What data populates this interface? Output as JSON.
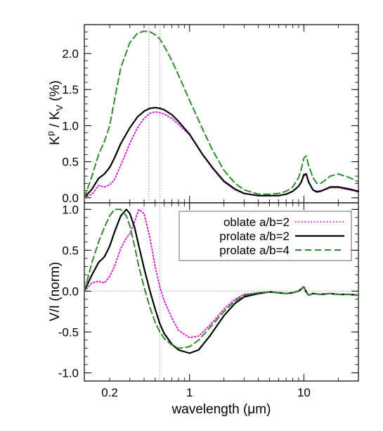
{
  "chart_data": [
    {
      "type": "line",
      "panel": "top",
      "ylabel_parts": {
        "k": "K",
        "sup": "p",
        "sep": " / K",
        "sub": "V",
        "unit": "  (%)"
      },
      "ylabel": "Kp / KV  (%)",
      "ylim": [
        -0.07,
        2.4
      ],
      "yticks": [
        0.0,
        0.5,
        1.0,
        1.5,
        2.0
      ],
      "ytick_labels": [
        "0.0",
        "0.5",
        "1.0",
        "1.5",
        "2.0"
      ],
      "xscale": "log",
      "xlim": [
        0.12,
        30
      ],
      "reference_lines": {
        "vertical_x": [
          0.44,
          0.55
        ]
      },
      "series": [
        {
          "name": "oblate a/b=2",
          "color": "#e01ee0",
          "dash": "dotted",
          "x": [
            0.12,
            0.14,
            0.16,
            0.18,
            0.2,
            0.22,
            0.25,
            0.3,
            0.35,
            0.4,
            0.45,
            0.5,
            0.55,
            0.6,
            0.7,
            0.8,
            1.0,
            1.3,
            1.6,
            2.0,
            2.5,
            3.0,
            4.0,
            5.0,
            6.0,
            7.0,
            8.0,
            9.0,
            9.5,
            10.0,
            10.5,
            11.0,
            12.0,
            13.0,
            14.0,
            15.0,
            17.0,
            20.0,
            25.0,
            30.0
          ],
          "y": [
            0.0,
            0.05,
            0.17,
            0.15,
            0.18,
            0.25,
            0.45,
            0.75,
            0.97,
            1.1,
            1.17,
            1.19,
            1.18,
            1.16,
            1.1,
            1.02,
            0.87,
            0.6,
            0.4,
            0.22,
            0.11,
            0.06,
            0.03,
            0.03,
            0.03,
            0.05,
            0.09,
            0.16,
            0.22,
            0.31,
            0.32,
            0.22,
            0.11,
            0.09,
            0.1,
            0.11,
            0.14,
            0.14,
            0.11,
            0.08
          ]
        },
        {
          "name": "prolate a/b=2",
          "color": "#000000",
          "dash": "solid",
          "x": [
            0.12,
            0.14,
            0.16,
            0.18,
            0.2,
            0.22,
            0.25,
            0.3,
            0.35,
            0.4,
            0.45,
            0.5,
            0.55,
            0.6,
            0.7,
            0.8,
            1.0,
            1.3,
            1.6,
            2.0,
            2.5,
            3.0,
            4.0,
            5.0,
            6.0,
            7.0,
            8.0,
            9.0,
            9.5,
            10.0,
            10.5,
            11.0,
            12.0,
            13.0,
            14.0,
            15.0,
            17.0,
            20.0,
            25.0,
            30.0
          ],
          "y": [
            0.0,
            0.12,
            0.27,
            0.33,
            0.42,
            0.55,
            0.75,
            0.97,
            1.12,
            1.2,
            1.24,
            1.25,
            1.24,
            1.22,
            1.15,
            1.06,
            0.88,
            0.6,
            0.41,
            0.23,
            0.12,
            0.06,
            0.03,
            0.03,
            0.03,
            0.05,
            0.09,
            0.16,
            0.22,
            0.32,
            0.33,
            0.22,
            0.11,
            0.08,
            0.09,
            0.11,
            0.15,
            0.15,
            0.12,
            0.09
          ]
        },
        {
          "name": "prolate a/b=4",
          "color": "#2e8b2e",
          "dash": "dashed",
          "x": [
            0.12,
            0.14,
            0.16,
            0.18,
            0.2,
            0.22,
            0.25,
            0.3,
            0.35,
            0.4,
            0.45,
            0.5,
            0.55,
            0.6,
            0.7,
            0.8,
            1.0,
            1.3,
            1.6,
            2.0,
            2.5,
            3.0,
            4.0,
            5.0,
            6.0,
            7.0,
            8.0,
            9.0,
            9.5,
            10.0,
            10.5,
            11.0,
            12.0,
            13.0,
            14.0,
            15.0,
            17.0,
            20.0,
            25.0,
            30.0
          ],
          "y": [
            0.0,
            0.3,
            0.6,
            0.78,
            1.0,
            1.35,
            1.8,
            2.15,
            2.28,
            2.31,
            2.3,
            2.26,
            2.2,
            2.1,
            1.9,
            1.7,
            1.35,
            0.95,
            0.65,
            0.38,
            0.2,
            0.11,
            0.05,
            0.05,
            0.06,
            0.09,
            0.15,
            0.28,
            0.4,
            0.55,
            0.58,
            0.45,
            0.28,
            0.2,
            0.2,
            0.23,
            0.3,
            0.33,
            0.28,
            0.22
          ]
        }
      ]
    },
    {
      "type": "line",
      "panel": "bottom",
      "ylabel": "V/I (norm)",
      "ylim": [
        -1.1,
        1.08
      ],
      "yticks": [
        -1.0,
        -0.5,
        0.0,
        0.5,
        1.0
      ],
      "ytick_labels": [
        "-1.0",
        "-0.5",
        "0.0",
        "0.5",
        "1.0"
      ],
      "xscale": "log",
      "xlim": [
        0.12,
        30
      ],
      "xticks": [
        0.2,
        1,
        10
      ],
      "xtick_labels": [
        "0.2",
        "1",
        "10"
      ],
      "xlabel": "wavelength (μm)",
      "reference_lines": {
        "horizontal_y": [
          0.0
        ],
        "vertical_x": [
          0.55
        ]
      },
      "legend": {
        "position": "top-right",
        "entries": [
          "oblate a/b=2",
          "prolate a/b=2",
          "prolate a/b=4"
        ]
      },
      "series": [
        {
          "name": "oblate a/b=2",
          "color": "#e01ee0",
          "dash": "dotted",
          "x": [
            0.12,
            0.14,
            0.16,
            0.18,
            0.2,
            0.22,
            0.25,
            0.28,
            0.3,
            0.33,
            0.36,
            0.4,
            0.45,
            0.5,
            0.55,
            0.6,
            0.7,
            0.8,
            1.0,
            1.2,
            1.5,
            2.0,
            2.5,
            3.0,
            4.0,
            5.0,
            6.0,
            7.0,
            8.0,
            9.0,
            10.0,
            10.5,
            11.0,
            12.0,
            14.0,
            17.0,
            20.0,
            25.0,
            30.0
          ],
          "y": [
            0.0,
            0.1,
            0.12,
            0.1,
            0.18,
            0.3,
            0.52,
            0.65,
            0.7,
            0.85,
            1.0,
            0.95,
            0.65,
            0.3,
            0.05,
            -0.12,
            -0.33,
            -0.48,
            -0.57,
            -0.55,
            -0.42,
            -0.22,
            -0.1,
            -0.04,
            -0.02,
            -0.01,
            -0.02,
            -0.03,
            -0.02,
            0.0,
            0.06,
            -0.02,
            -0.05,
            -0.03,
            -0.04,
            -0.03,
            -0.04,
            -0.04,
            -0.05
          ]
        },
        {
          "name": "prolate a/b=2",
          "color": "#000000",
          "dash": "solid",
          "x": [
            0.12,
            0.14,
            0.16,
            0.18,
            0.2,
            0.22,
            0.25,
            0.28,
            0.3,
            0.33,
            0.36,
            0.4,
            0.45,
            0.5,
            0.55,
            0.6,
            0.7,
            0.8,
            1.0,
            1.2,
            1.5,
            2.0,
            2.5,
            3.0,
            4.0,
            5.0,
            6.0,
            7.0,
            8.0,
            9.0,
            10.0,
            10.5,
            11.0,
            12.0,
            14.0,
            17.0,
            20.0,
            25.0,
            30.0
          ],
          "y": [
            0.0,
            0.2,
            0.35,
            0.42,
            0.55,
            0.72,
            0.92,
            1.0,
            0.95,
            0.78,
            0.55,
            0.28,
            0.0,
            -0.22,
            -0.4,
            -0.52,
            -0.65,
            -0.72,
            -0.76,
            -0.72,
            -0.55,
            -0.3,
            -0.15,
            -0.07,
            -0.03,
            -0.01,
            -0.02,
            -0.03,
            -0.02,
            0.0,
            0.05,
            -0.01,
            -0.05,
            -0.03,
            -0.04,
            -0.03,
            -0.04,
            -0.04,
            -0.05
          ]
        },
        {
          "name": "prolate a/b=4",
          "color": "#2e8b2e",
          "dash": "dashed",
          "x": [
            0.12,
            0.14,
            0.16,
            0.18,
            0.2,
            0.22,
            0.25,
            0.28,
            0.3,
            0.33,
            0.36,
            0.4,
            0.45,
            0.5,
            0.55,
            0.6,
            0.7,
            0.8,
            1.0,
            1.2,
            1.5,
            2.0,
            2.5,
            3.0,
            4.0,
            5.0,
            6.0,
            7.0,
            8.0,
            9.0,
            10.0,
            10.5,
            11.0,
            12.0,
            14.0,
            17.0,
            20.0,
            25.0,
            30.0
          ],
          "y": [
            0.0,
            0.35,
            0.6,
            0.78,
            0.92,
            1.0,
            1.0,
            0.92,
            0.8,
            0.55,
            0.3,
            0.05,
            -0.2,
            -0.38,
            -0.5,
            -0.58,
            -0.66,
            -0.7,
            -0.68,
            -0.6,
            -0.45,
            -0.25,
            -0.12,
            -0.05,
            -0.02,
            -0.01,
            -0.02,
            -0.03,
            -0.02,
            0.0,
            0.05,
            -0.01,
            -0.05,
            -0.03,
            -0.04,
            -0.03,
            -0.04,
            -0.04,
            -0.05
          ]
        }
      ]
    }
  ]
}
